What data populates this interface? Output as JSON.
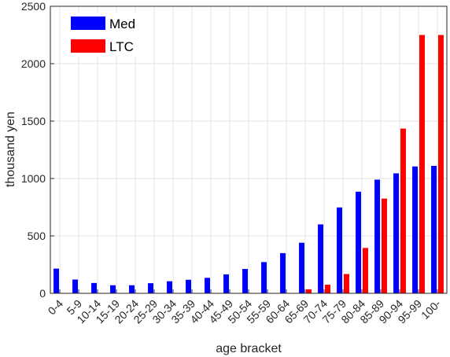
{
  "chart_data": {
    "type": "bar",
    "title": "",
    "xlabel": "age bracket",
    "ylabel": "thousand yen",
    "ylim": [
      0,
      2500
    ],
    "yticks": [
      0,
      500,
      1000,
      1500,
      2000,
      2500
    ],
    "grid": true,
    "legend": "top-left",
    "categories": [
      "0-4",
      "5-9",
      "10-14",
      "15-19",
      "20-24",
      "25-29",
      "30-34",
      "35-39",
      "40-44",
      "45-49",
      "50-54",
      "55-59",
      "60-64",
      "65-69",
      "70-74",
      "75-79",
      "80-84",
      "85-89",
      "90-94",
      "95-99",
      "100-"
    ],
    "series": [
      {
        "name": "Med",
        "color": "#0000ff",
        "values": [
          215,
          120,
          90,
          70,
          70,
          88,
          105,
          118,
          135,
          165,
          212,
          272,
          350,
          440,
          600,
          748,
          885,
          990,
          1045,
          1105,
          1110
        ]
      },
      {
        "name": "LTC",
        "color": "#ff0000",
        "values": [
          0,
          0,
          0,
          0,
          0,
          0,
          0,
          0,
          0,
          0,
          0,
          0,
          0,
          35,
          75,
          168,
          395,
          825,
          1435,
          2250,
          2250
        ]
      }
    ]
  }
}
